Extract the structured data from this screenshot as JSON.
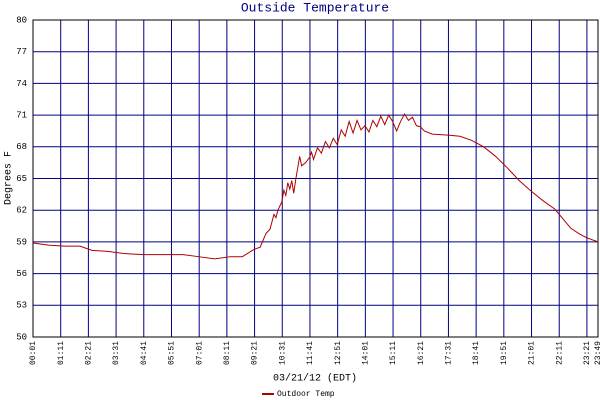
{
  "chart_data": {
    "type": "line",
    "title": "Outside Temperature",
    "y_label": "Degrees F",
    "x_label": "03/21/12 (EDT)",
    "x": [
      1,
      40,
      80,
      120,
      150,
      190,
      230,
      280,
      330,
      380,
      420,
      460,
      500,
      530,
      560,
      575,
      590,
      600,
      610,
      615,
      620,
      630,
      635,
      640,
      645,
      650,
      655,
      660,
      665,
      670,
      675,
      680,
      690,
      700,
      705,
      710,
      720,
      730,
      740,
      750,
      760,
      770,
      780,
      790,
      800,
      810,
      820,
      830,
      840,
      850,
      860,
      870,
      880,
      890,
      900,
      910,
      920,
      930,
      940,
      950,
      960,
      970,
      980,
      990,
      1010,
      1050,
      1080,
      1110,
      1140,
      1170,
      1200,
      1230,
      1260,
      1290,
      1320,
      1340,
      1360,
      1380,
      1400,
      1429
    ],
    "series": [
      {
        "name": "Outdoor Temp",
        "color": "#b00000",
        "values": [
          58.9,
          58.7,
          58.6,
          58.6,
          58.2,
          58.1,
          57.9,
          57.8,
          57.8,
          57.8,
          57.6,
          57.4,
          57.6,
          57.6,
          58.3,
          58.5,
          59.8,
          60.2,
          61.6,
          61.3,
          62.0,
          62.8,
          63.9,
          63.4,
          64.6,
          64.0,
          64.8,
          63.6,
          64.9,
          66.0,
          67.1,
          66.2,
          66.5,
          67.0,
          67.5,
          66.8,
          67.9,
          67.4,
          68.5,
          67.9,
          68.8,
          68.2,
          69.6,
          69.0,
          70.4,
          69.3,
          70.5,
          69.6,
          70.0,
          69.4,
          70.5,
          69.9,
          70.9,
          70.1,
          71.0,
          70.4,
          69.5,
          70.4,
          71.1,
          70.5,
          70.8,
          70.0,
          69.9,
          69.5,
          69.2,
          69.1,
          69.0,
          68.6,
          68.0,
          67.1,
          66.0,
          64.8,
          63.8,
          62.9,
          62.1,
          61.2,
          60.3,
          59.8,
          59.4,
          59.0
        ]
      }
    ],
    "xlim": [
      1,
      1429
    ],
    "xticks": [
      {
        "value": 1,
        "label": "00:01"
      },
      {
        "value": 71,
        "label": "01:11"
      },
      {
        "value": 141,
        "label": "02:21"
      },
      {
        "value": 211,
        "label": "03:31"
      },
      {
        "value": 281,
        "label": "04:41"
      },
      {
        "value": 351,
        "label": "05:51"
      },
      {
        "value": 421,
        "label": "07:01"
      },
      {
        "value": 491,
        "label": "08:11"
      },
      {
        "value": 561,
        "label": "09:21"
      },
      {
        "value": 631,
        "label": "10:31"
      },
      {
        "value": 701,
        "label": "11:41"
      },
      {
        "value": 771,
        "label": "12:51"
      },
      {
        "value": 841,
        "label": "14:01"
      },
      {
        "value": 911,
        "label": "15:11"
      },
      {
        "value": 981,
        "label": "16:21"
      },
      {
        "value": 1051,
        "label": "17:31"
      },
      {
        "value": 1121,
        "label": "18:41"
      },
      {
        "value": 1191,
        "label": "19:51"
      },
      {
        "value": 1261,
        "label": "21:01"
      },
      {
        "value": 1331,
        "label": "22:11"
      },
      {
        "value": 1401,
        "label": "23:21"
      },
      {
        "value": 1429,
        "label": "23:49"
      }
    ],
    "ylim": [
      50,
      80
    ],
    "yticks": [
      50,
      53,
      56,
      59,
      62,
      65,
      68,
      71,
      74,
      77,
      80
    ],
    "grid": true,
    "grid_color": "#000080"
  }
}
